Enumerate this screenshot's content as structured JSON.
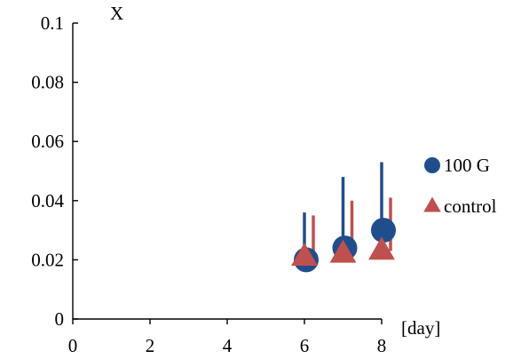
{
  "chart_data": {
    "type": "scatter",
    "ylabel": "X",
    "xlabel": "[day]",
    "xlim": [
      0,
      8
    ],
    "ylim": [
      0,
      0.1
    ],
    "x_ticks": [
      0,
      2,
      4,
      6,
      8
    ],
    "y_ticks": [
      0,
      0.02,
      0.04,
      0.06,
      0.08,
      0.1
    ],
    "x_tick_labels": [
      "0",
      "2",
      "4",
      "6",
      "8"
    ],
    "y_tick_labels": [
      "0",
      "0.02",
      "0.04",
      "0.06",
      "0.08",
      "0.1"
    ],
    "grid": false,
    "legend": "right",
    "series": [
      {
        "name": "100 G",
        "marker": "circle",
        "color": "#1f4e8c",
        "x": [
          6,
          7,
          8
        ],
        "y": [
          0.02,
          0.024,
          0.03
        ],
        "error_upper": [
          0.016,
          0.024,
          0.023
        ]
      },
      {
        "name": "control",
        "marker": "triangle",
        "color": "#c0504d",
        "x": [
          6,
          7,
          8
        ],
        "y": [
          0.021,
          0.022,
          0.023
        ],
        "error_upper": [
          0.014,
          0.018,
          0.018
        ]
      }
    ]
  }
}
